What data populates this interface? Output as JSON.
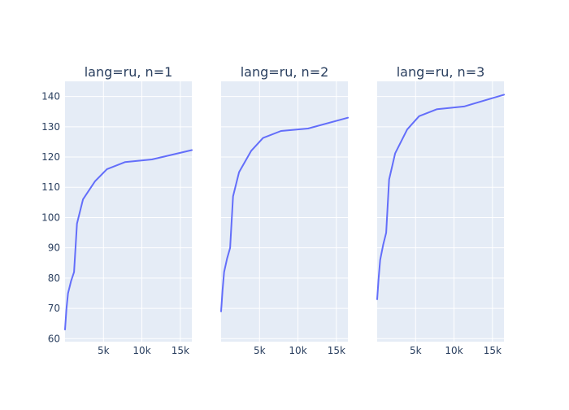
{
  "chart_data": [
    {
      "type": "line",
      "title": "lang=ru, n=1",
      "xlabel": "",
      "ylabel": "",
      "xlim": [
        0,
        16500
      ],
      "ylim": [
        59,
        145
      ],
      "y_ticks": [
        60,
        70,
        80,
        90,
        100,
        110,
        120,
        130,
        140
      ],
      "x_ticks": [
        5000,
        10000,
        15000
      ],
      "x_tick_labels": [
        "5k",
        "10k",
        "15k"
      ],
      "grid": true,
      "series": [
        {
          "color": "#636EFA",
          "x": [
            0,
            190,
            390,
            780,
            1170,
            1560,
            2340,
            3900,
            5460,
            7800,
            11310,
            16500
          ],
          "y": [
            63,
            70,
            75,
            79,
            82,
            98,
            106,
            112,
            116,
            118.3,
            119.2,
            122.3
          ]
        }
      ]
    },
    {
      "type": "line",
      "title": "lang=ru, n=2",
      "xlabel": "",
      "ylabel": "",
      "xlim": [
        0,
        16500
      ],
      "ylim": [
        59,
        145
      ],
      "y_ticks": [
        60,
        70,
        80,
        90,
        100,
        110,
        120,
        130,
        140
      ],
      "x_ticks": [
        5000,
        10000,
        15000
      ],
      "x_tick_labels": [
        "5k",
        "10k",
        "15k"
      ],
      "grid": true,
      "series": [
        {
          "color": "#636EFA",
          "x": [
            0,
            190,
            390,
            780,
            1170,
            1560,
            2340,
            3900,
            5460,
            7800,
            11310,
            16500
          ],
          "y": [
            69,
            76,
            82,
            86.5,
            90,
            107,
            115,
            122,
            126.3,
            128.6,
            129.4,
            133
          ]
        }
      ]
    },
    {
      "type": "line",
      "title": "lang=ru, n=3",
      "xlabel": "",
      "ylabel": "",
      "xlim": [
        0,
        16500
      ],
      "ylim": [
        59,
        145
      ],
      "y_ticks": [
        60,
        70,
        80,
        90,
        100,
        110,
        120,
        130,
        140
      ],
      "x_ticks": [
        5000,
        10000,
        15000
      ],
      "x_tick_labels": [
        "5k",
        "10k",
        "15k"
      ],
      "grid": true,
      "series": [
        {
          "color": "#636EFA",
          "x": [
            0,
            190,
            390,
            780,
            1170,
            1560,
            2340,
            3900,
            5460,
            7800,
            11310,
            16500
          ],
          "y": [
            73,
            80,
            86,
            91,
            95,
            112.6,
            121.2,
            129.1,
            133.5,
            135.8,
            136.7,
            140.6
          ]
        }
      ]
    }
  ]
}
